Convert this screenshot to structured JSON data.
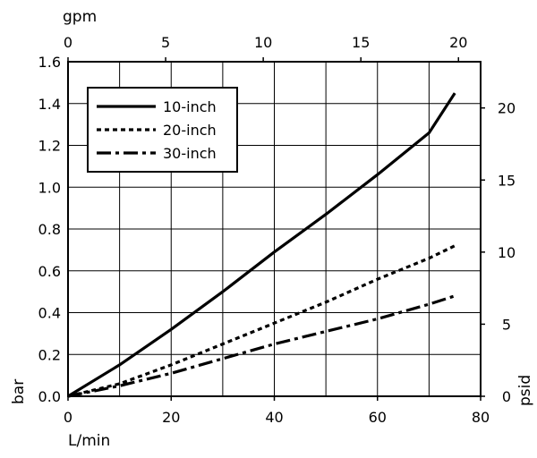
{
  "chart_data": {
    "type": "line",
    "x_bottom": {
      "label": "L/min",
      "range": [
        0,
        80
      ],
      "ticks": [
        "0",
        "20",
        "40",
        "60",
        "80"
      ]
    },
    "x_top": {
      "label": "gpm",
      "range": [
        0,
        21.134
      ],
      "ticks": [
        "0",
        "5",
        "10",
        "15",
        "20"
      ]
    },
    "y_left": {
      "label": "bar",
      "range": [
        0,
        1.6
      ],
      "ticks": [
        "0.0",
        "0.2",
        "0.4",
        "0.6",
        "0.8",
        "1.0",
        "1.2",
        "1.4",
        "1.6"
      ]
    },
    "y_right": {
      "label": "psid",
      "range": [
        0,
        23.206
      ],
      "ticks": [
        "0",
        "5",
        "10",
        "15",
        "20"
      ]
    },
    "grid": true,
    "legend_position": "top-left",
    "series": [
      {
        "name": "10-inch",
        "style": "solid",
        "x": [
          0,
          10,
          20,
          30,
          40,
          50,
          60,
          70,
          75
        ],
        "y": [
          0,
          0.15,
          0.32,
          0.5,
          0.69,
          0.87,
          1.06,
          1.26,
          1.45
        ]
      },
      {
        "name": "20-inch",
        "style": "dotted",
        "x": [
          0,
          10,
          20,
          30,
          40,
          50,
          60,
          70,
          75
        ],
        "y": [
          0,
          0.06,
          0.15,
          0.25,
          0.35,
          0.45,
          0.56,
          0.66,
          0.72
        ]
      },
      {
        "name": "30-inch",
        "style": "dash-dot",
        "x": [
          0,
          10,
          20,
          30,
          40,
          50,
          60,
          70,
          75
        ],
        "y": [
          0,
          0.05,
          0.11,
          0.18,
          0.25,
          0.31,
          0.37,
          0.44,
          0.48
        ]
      }
    ]
  }
}
